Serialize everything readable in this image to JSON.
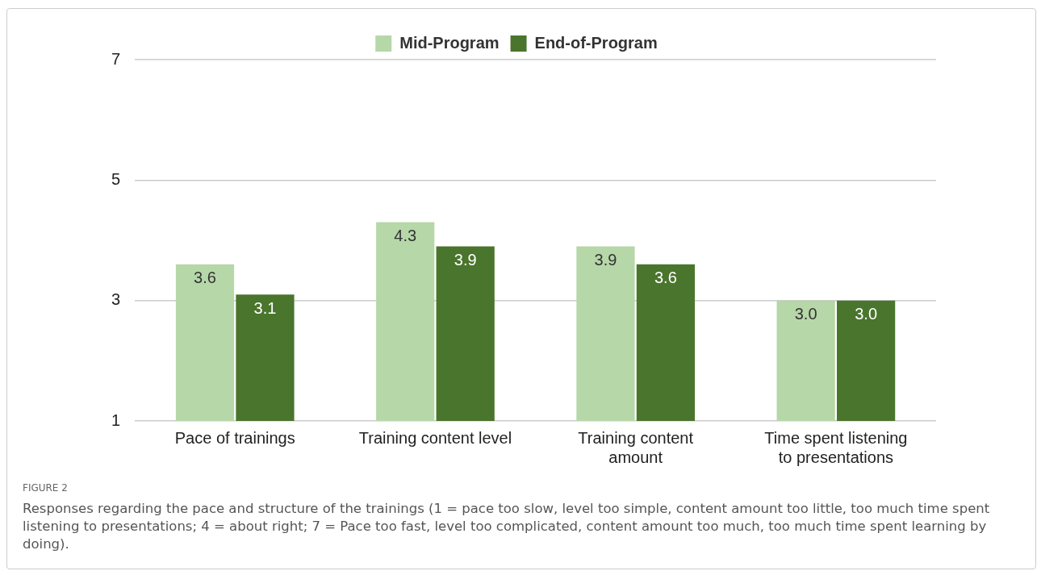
{
  "chart_data": {
    "type": "bar",
    "categories": [
      "Pace of trainings",
      "Training content level",
      "Training content amount",
      "Time spent listening to presentations"
    ],
    "series": [
      {
        "name": "Mid-Program",
        "color": "#b6d7a8",
        "values": [
          3.6,
          4.3,
          3.9,
          3.0
        ],
        "value_labels": [
          "3.6",
          "4.3",
          "3.9",
          "3.0"
        ]
      },
      {
        "name": "End-of-Program",
        "color": "#4a752c",
        "values": [
          3.1,
          3.9,
          3.6,
          3.0
        ],
        "value_labels": [
          "3.1",
          "3.9",
          "3.6",
          "3.0"
        ]
      }
    ],
    "ylim": [
      1,
      7
    ],
    "yticks": [
      1,
      3,
      5,
      7
    ],
    "grid": "y",
    "legend": "top",
    "annotations": [
      "FIGURE 2",
      "Responses regarding the pace and structure of the trainings (1 = pace too slow, level too simple, content amount too little, too much time spent listening to presentations; 4 = about right; 7 = Pace too fast, level too complicated, content amount too much, too much time spent learning by doing)."
    ]
  }
}
